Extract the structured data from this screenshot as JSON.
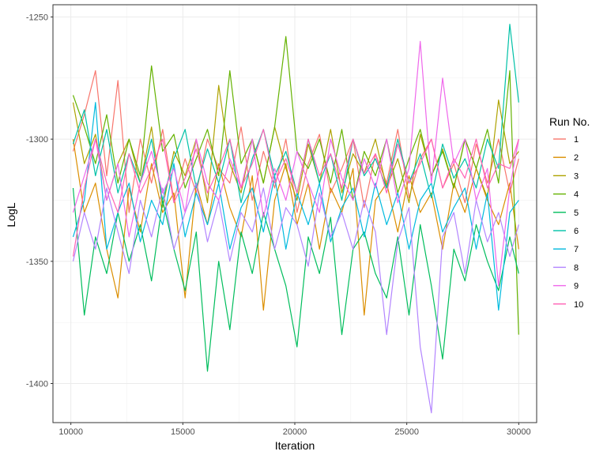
{
  "chart_data": {
    "type": "line",
    "xlabel": "Iteration",
    "ylabel": "LogL",
    "xlim": [
      9200,
      30800
    ],
    "ylim": [
      -1416,
      -1245
    ],
    "x_ticks": [
      10000,
      15000,
      20000,
      25000,
      30000
    ],
    "x_tick_labels": [
      "10000",
      "15000",
      "20000",
      "25000",
      "30000"
    ],
    "y_ticks": [
      -1250,
      -1300,
      -1350,
      -1400
    ],
    "y_tick_labels": [
      "-1250",
      "-1300",
      "-1350",
      "-1400"
    ],
    "grid": true,
    "legend": {
      "title": "Run No.",
      "position": "right"
    },
    "x": [
      10100,
      10600,
      11100,
      11600,
      12100,
      12600,
      13100,
      13600,
      14100,
      14600,
      15100,
      15600,
      16100,
      16600,
      17100,
      17600,
      18100,
      18600,
      19100,
      19600,
      20100,
      20600,
      21100,
      21600,
      22100,
      22600,
      23100,
      23600,
      24100,
      24600,
      25100,
      25600,
      26100,
      26600,
      27100,
      27600,
      28100,
      28600,
      29100,
      29600,
      30000
    ],
    "series": [
      {
        "name": "1",
        "color": "#F8766D",
        "values": [
          -1305,
          -1290,
          -1272,
          -1315,
          -1276,
          -1330,
          -1300,
          -1318,
          -1296,
          -1325,
          -1308,
          -1322,
          -1300,
          -1312,
          -1318,
          -1295,
          -1325,
          -1305,
          -1320,
          -1300,
          -1330,
          -1310,
          -1298,
          -1322,
          -1312,
          -1300,
          -1328,
          -1306,
          -1318,
          -1296,
          -1324,
          -1308,
          -1300,
          -1320,
          -1310,
          -1326,
          -1302,
          -1318,
          -1300,
          -1322,
          -1308
        ]
      },
      {
        "name": "2",
        "color": "#DB8E00",
        "values": [
          -1300,
          -1330,
          -1318,
          -1345,
          -1365,
          -1320,
          -1338,
          -1310,
          -1330,
          -1322,
          -1365,
          -1318,
          -1335,
          -1310,
          -1328,
          -1340,
          -1315,
          -1370,
          -1325,
          -1310,
          -1335,
          -1318,
          -1345,
          -1320,
          -1330,
          -1312,
          -1372,
          -1325,
          -1318,
          -1338,
          -1315,
          -1330,
          -1322,
          -1345,
          -1318,
          -1330,
          -1312,
          -1325,
          -1335,
          -1318,
          -1345
        ]
      },
      {
        "name": "3",
        "color": "#AEA200",
        "values": [
          -1285,
          -1310,
          -1298,
          -1325,
          -1310,
          -1300,
          -1318,
          -1295,
          -1328,
          -1305,
          -1315,
          -1300,
          -1326,
          -1278,
          -1310,
          -1322,
          -1300,
          -1318,
          -1295,
          -1312,
          -1325,
          -1302,
          -1318,
          -1296,
          -1322,
          -1306,
          -1314,
          -1300,
          -1320,
          -1308,
          -1326,
          -1298,
          -1315,
          -1304,
          -1320,
          -1300,
          -1312,
          -1324,
          -1284,
          -1310,
          -1305
        ]
      },
      {
        "name": "4",
        "color": "#64B200",
        "values": [
          -1282,
          -1295,
          -1310,
          -1290,
          -1318,
          -1300,
          -1315,
          -1270,
          -1305,
          -1298,
          -1320,
          -1308,
          -1296,
          -1315,
          -1272,
          -1310,
          -1300,
          -1318,
          -1295,
          -1258,
          -1305,
          -1312,
          -1300,
          -1318,
          -1296,
          -1325,
          -1305,
          -1315,
          -1300,
          -1322,
          -1308,
          -1296,
          -1315,
          -1305,
          -1320,
          -1300,
          -1312,
          -1296,
          -1318,
          -1272,
          -1380
        ]
      },
      {
        "name": "5",
        "color": "#00BD5C",
        "values": [
          -1320,
          -1372,
          -1340,
          -1355,
          -1330,
          -1350,
          -1335,
          -1358,
          -1325,
          -1345,
          -1362,
          -1338,
          -1395,
          -1350,
          -1378,
          -1338,
          -1355,
          -1330,
          -1345,
          -1360,
          -1385,
          -1340,
          -1355,
          -1332,
          -1380,
          -1345,
          -1338,
          -1355,
          -1365,
          -1340,
          -1372,
          -1335,
          -1360,
          -1390,
          -1345,
          -1358,
          -1335,
          -1350,
          -1362,
          -1340,
          -1355
        ]
      },
      {
        "name": "6",
        "color": "#00C1A7",
        "values": [
          -1302,
          -1288,
          -1315,
          -1296,
          -1322,
          -1306,
          -1318,
          -1300,
          -1325,
          -1308,
          -1296,
          -1320,
          -1304,
          -1318,
          -1300,
          -1326,
          -1308,
          -1296,
          -1315,
          -1305,
          -1322,
          -1300,
          -1318,
          -1306,
          -1325,
          -1300,
          -1315,
          -1308,
          -1320,
          -1300,
          -1318,
          -1306,
          -1324,
          -1302,
          -1316,
          -1308,
          -1320,
          -1300,
          -1312,
          -1253,
          -1285
        ]
      },
      {
        "name": "7",
        "color": "#00BADE",
        "values": [
          -1340,
          -1325,
          -1285,
          -1345,
          -1330,
          -1318,
          -1342,
          -1325,
          -1335,
          -1310,
          -1340,
          -1322,
          -1335,
          -1318,
          -1345,
          -1328,
          -1320,
          -1338,
          -1315,
          -1345,
          -1322,
          -1335,
          -1318,
          -1342,
          -1328,
          -1320,
          -1340,
          -1318,
          -1335,
          -1322,
          -1345,
          -1325,
          -1318,
          -1338,
          -1328,
          -1320,
          -1345,
          -1322,
          -1370,
          -1330,
          -1325
        ]
      },
      {
        "name": "8",
        "color": "#B385FF",
        "values": [
          -1350,
          -1330,
          -1345,
          -1320,
          -1338,
          -1355,
          -1325,
          -1340,
          -1320,
          -1345,
          -1330,
          -1318,
          -1342,
          -1325,
          -1350,
          -1330,
          -1338,
          -1320,
          -1345,
          -1328,
          -1335,
          -1352,
          -1322,
          -1340,
          -1330,
          -1345,
          -1325,
          -1338,
          -1380,
          -1342,
          -1328,
          -1385,
          -1412,
          -1340,
          -1330,
          -1355,
          -1325,
          -1342,
          -1330,
          -1348,
          -1335
        ]
      },
      {
        "name": "9",
        "color": "#EF67EB",
        "values": [
          -1330,
          -1315,
          -1300,
          -1325,
          -1310,
          -1340,
          -1318,
          -1305,
          -1322,
          -1312,
          -1330,
          -1300,
          -1318,
          -1325,
          -1308,
          -1320,
          -1300,
          -1332,
          -1312,
          -1325,
          -1305,
          -1318,
          -1330,
          -1300,
          -1316,
          -1325,
          -1308,
          -1320,
          -1300,
          -1326,
          -1312,
          -1260,
          -1318,
          -1275,
          -1310,
          -1300,
          -1325,
          -1312,
          -1360,
          -1320,
          -1300
        ]
      },
      {
        "name": "10",
        "color": "#FF63B6",
        "values": [
          -1348,
          -1320,
          -1300,
          -1318,
          -1330,
          -1306,
          -1322,
          -1312,
          -1300,
          -1326,
          -1316,
          -1304,
          -1322,
          -1312,
          -1300,
          -1320,
          -1310,
          -1296,
          -1318,
          -1308,
          -1322,
          -1300,
          -1315,
          -1306,
          -1320,
          -1300,
          -1314,
          -1306,
          -1322,
          -1302,
          -1318,
          -1310,
          -1300,
          -1320,
          -1308,
          -1316,
          -1300,
          -1320,
          -1310,
          -1312,
          -1300
        ]
      }
    ]
  }
}
